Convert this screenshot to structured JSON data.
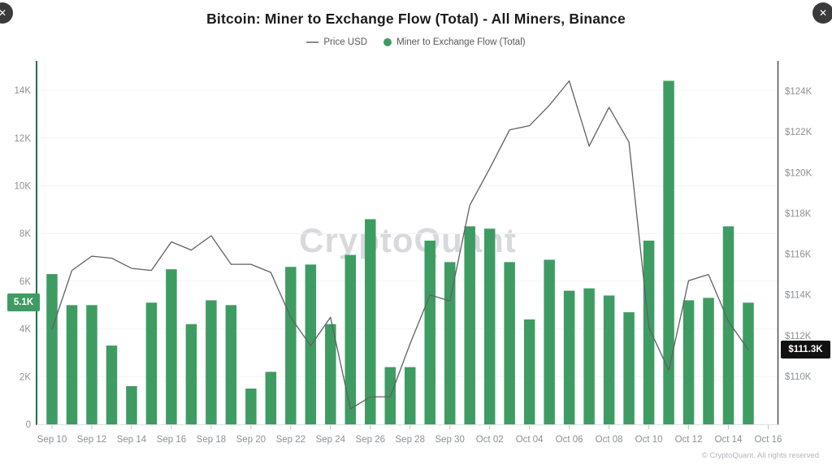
{
  "window": {
    "close_left_glyph": "✕",
    "close_right_glyph": "✕"
  },
  "header": {
    "title": "Bitcoin: Miner to Exchange Flow (Total) - All Miners, Binance"
  },
  "legend": {
    "price_label": "Price USD",
    "flow_label": "Miner to Exchange Flow (Total)"
  },
  "badges": {
    "flow": "5.1K",
    "price": "$111.3K"
  },
  "watermark": "CryptoQuant",
  "footer": "© CryptoQuant. All rights reserved",
  "colors": {
    "bar_green": "#3E9C63",
    "axis_green": "#1E7044",
    "price_line": "#5F6164",
    "badge_black": "#111111",
    "tick_label_gray": "#8B9196",
    "gridline": "#F2F3F5"
  },
  "chart_data": {
    "type": "bar+line",
    "title": "Bitcoin: Miner to Exchange Flow (Total) - All Miners, Binance",
    "categories": [
      "Sep 10",
      "Sep 11",
      "Sep 12",
      "Sep 13",
      "Sep 14",
      "Sep 15",
      "Sep 16",
      "Sep 17",
      "Sep 18",
      "Sep 19",
      "Sep 20",
      "Sep 21",
      "Sep 22",
      "Sep 23",
      "Sep 24",
      "Sep 25",
      "Sep 26",
      "Sep 27",
      "Sep 28",
      "Sep 29",
      "Sep 30",
      "Oct 01",
      "Oct 02",
      "Oct 03",
      "Oct 04",
      "Oct 05",
      "Oct 06",
      "Oct 07",
      "Oct 08",
      "Oct 09",
      "Oct 10",
      "Oct 11",
      "Oct 12",
      "Oct 13",
      "Oct 14",
      "Oct 15"
    ],
    "series": [
      {
        "name": "Miner to Exchange Flow (Total)",
        "type": "bar",
        "axis": "left",
        "color": "#3E9C63",
        "unit": "K",
        "values": [
          6.3,
          5.0,
          5.0,
          3.3,
          1.6,
          5.1,
          6.5,
          4.2,
          5.2,
          5.0,
          1.5,
          2.2,
          6.6,
          6.7,
          4.2,
          7.1,
          8.6,
          2.4,
          2.4,
          7.7,
          6.8,
          8.3,
          8.2,
          6.8,
          4.4,
          6.9,
          5.6,
          5.7,
          5.4,
          4.7,
          7.7,
          14.4,
          5.2,
          5.3,
          8.3,
          5.1
        ]
      },
      {
        "name": "Price USD",
        "type": "line",
        "axis": "right",
        "color": "#5F6164",
        "unit": "$K",
        "values": [
          112.3,
          115.2,
          115.9,
          115.8,
          115.3,
          115.2,
          116.6,
          116.2,
          116.9,
          115.5,
          115.5,
          115.1,
          112.9,
          111.5,
          112.9,
          108.4,
          109.0,
          109.0,
          111.6,
          114.0,
          113.7,
          118.4,
          120.2,
          122.1,
          122.3,
          123.3,
          124.5,
          121.3,
          123.2,
          121.5,
          112.4,
          110.3,
          114.7,
          115.0,
          112.7,
          111.3
        ]
      }
    ],
    "left_axis": {
      "name": "Miner to Exchange Flow (Total)",
      "tick_labels": [
        "0",
        "2K",
        "4K",
        "6K",
        "8K",
        "10K",
        "12K",
        "14K"
      ],
      "tick_values": [
        0,
        2,
        4,
        6,
        8,
        10,
        12,
        14
      ],
      "range": [
        0,
        15.2
      ],
      "highlight_label": "5.1K",
      "highlight_value": 5.1
    },
    "right_axis": {
      "name": "Price USD",
      "tick_labels": [
        "$110K",
        "$112K",
        "$114K",
        "$116K",
        "$118K",
        "$120K",
        "$122K",
        "$124K"
      ],
      "tick_values": [
        110,
        112,
        114,
        116,
        118,
        120,
        122,
        124
      ],
      "range": [
        107.8,
        125.6
      ],
      "highlight_label": "$111.3K",
      "highlight_value": 111.3
    },
    "x_tick_labels": [
      "Sep 10",
      "Sep 12",
      "Sep 14",
      "Sep 16",
      "Sep 18",
      "Sep 20",
      "Sep 22",
      "Sep 24",
      "Sep 26",
      "Sep 28",
      "Sep 30",
      "Oct 02",
      "Oct 04",
      "Oct 06",
      "Oct 08",
      "Oct 10",
      "Oct 12",
      "Oct 14",
      "Oct 16"
    ],
    "grid": "horizontal-faint",
    "legend_position": "top-center"
  }
}
